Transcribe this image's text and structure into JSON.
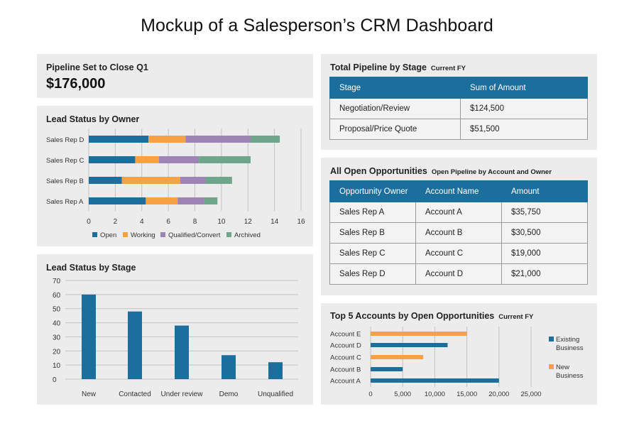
{
  "page": {
    "title": "Mockup of a Salesperson’s CRM Dashboard"
  },
  "colors": {
    "open": "#1c6f9c",
    "working": "#f5a246",
    "qualified": "#9d84b4",
    "archived": "#6fa58a",
    "existing": "#1c6f9c",
    "new": "#f5a246",
    "grid": "#c2c2c2",
    "table_header": "#1c6f9c",
    "panel": "#ececec"
  },
  "kpi": {
    "title": "Pipeline Set to Close Q1",
    "value": "$176,000"
  },
  "pipeline_by_stage": {
    "title": "Total Pipeline by Stage",
    "subtitle": "Current FY",
    "headers": [
      "Stage",
      "Sum of Amount"
    ],
    "rows": [
      [
        "Negotiation/Review",
        "$124,500"
      ],
      [
        "Proposal/Price Quote",
        "$51,500"
      ]
    ]
  },
  "open_opportunities": {
    "title": "All Open Opportunities",
    "subtitle": "Open Pipeline by Account and Owner",
    "headers": [
      "Opportunity Owner",
      "Account Name",
      "Amount"
    ],
    "rows": [
      [
        "Sales Rep A",
        "Account A",
        "$35,750"
      ],
      [
        "Sales Rep B",
        "Account B",
        "$30,500"
      ],
      [
        "Sales Rep C",
        "Account C",
        "$19,000"
      ],
      [
        "Sales Rep D",
        "Account D",
        "$21,000"
      ]
    ]
  },
  "lead_status_by_owner": {
    "title": "Lead Status by Owner"
  },
  "lead_status_by_stage": {
    "title": "Lead Status by Stage"
  },
  "top_accounts": {
    "title": "Top 5 Accounts by Open Opportunities",
    "subtitle": "Current FY"
  },
  "chart_data": [
    {
      "id": "lead_status_by_owner",
      "type": "bar",
      "orientation": "horizontal",
      "stacked": true,
      "title": "Lead Status by Owner",
      "categories": [
        "Sales Rep D",
        "Sales Rep C",
        "Sales Rep B",
        "Sales Rep A"
      ],
      "series": [
        {
          "name": "Open",
          "values": [
            4.5,
            3.5,
            2.5,
            4.3
          ]
        },
        {
          "name": "Working",
          "values": [
            2.8,
            1.8,
            4.4,
            2.4
          ]
        },
        {
          "name": "Qualified/Convert",
          "values": [
            4.9,
            3.0,
            1.9,
            2.0
          ]
        },
        {
          "name": "Archived",
          "values": [
            2.2,
            3.9,
            2.0,
            1.0
          ]
        }
      ],
      "xlim": [
        0,
        16
      ],
      "xticks": [
        "0",
        "2",
        "4",
        "6",
        "8",
        "10",
        "12",
        "14",
        "16"
      ],
      "legend": "bottom",
      "grid": true
    },
    {
      "id": "lead_status_by_stage",
      "type": "bar",
      "orientation": "vertical",
      "title": "Lead Status by Stage",
      "categories": [
        "New",
        "Contacted",
        "Under review",
        "Demo",
        "Unqualified"
      ],
      "values": [
        60,
        48,
        38,
        17,
        12
      ],
      "ylim": [
        0,
        70
      ],
      "yticks": [
        "0",
        "10",
        "20",
        "30",
        "40",
        "50",
        "60",
        "70"
      ],
      "grid": true
    },
    {
      "id": "top_accounts",
      "type": "bar",
      "orientation": "horizontal",
      "title": "Top 5 Accounts by Open Opportunities",
      "categories": [
        "Account E",
        "Account D",
        "Account C",
        "Account B",
        "Account A"
      ],
      "values": [
        15000,
        12000,
        8200,
        5000,
        20000
      ],
      "bar_series": [
        "New Business",
        "Existing Business",
        "New Business",
        "Existing Business",
        "Existing Business"
      ],
      "series_names": [
        "Existing Business",
        "New Business"
      ],
      "xlim": [
        0,
        25000
      ],
      "xticks": [
        "0",
        "5,000",
        "10,000",
        "15,000",
        "20,000",
        "25,000"
      ],
      "legend": "right",
      "grid": true
    }
  ]
}
